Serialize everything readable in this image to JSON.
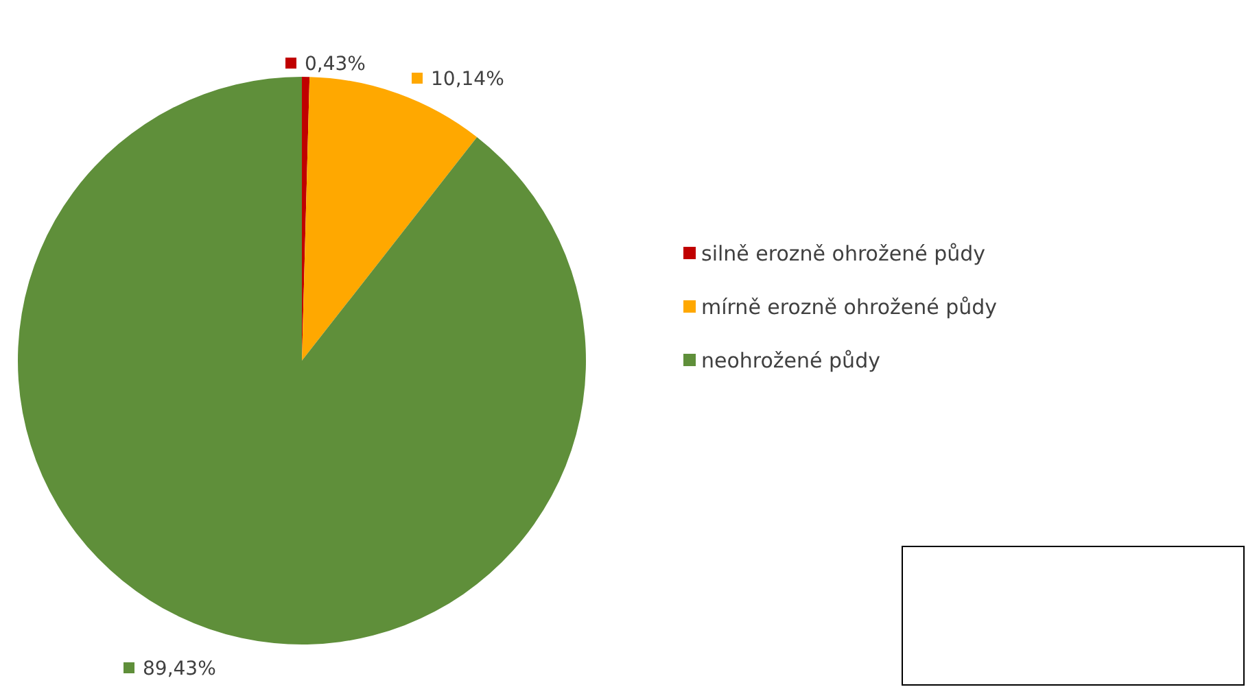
{
  "chart_data": {
    "type": "pie",
    "categories": [
      "silně erozně ohrožené půdy",
      "mírně erozně ohrožené půdy",
      "neohrožené půdy"
    ],
    "values": [
      0.43,
      10.14,
      89.43
    ],
    "colors": [
      "#c00000",
      "#ffa800",
      "#5f8f3a"
    ],
    "value_labels": [
      "0,43%",
      "10,14%",
      "89,43%"
    ],
    "legend": "right"
  }
}
